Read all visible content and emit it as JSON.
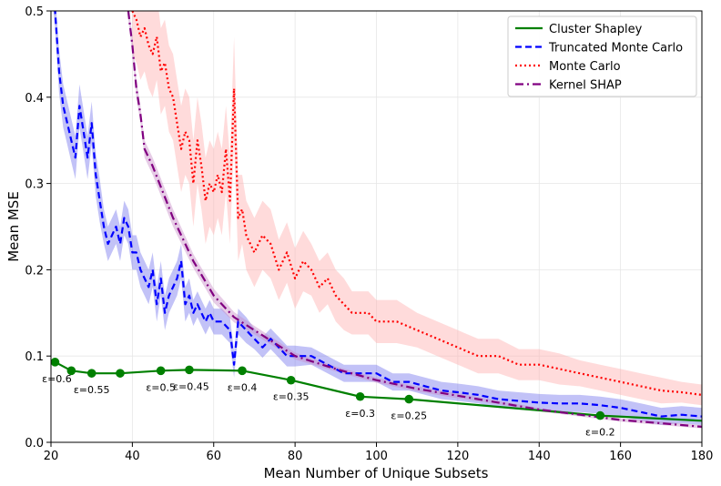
{
  "chart_data": {
    "type": "line",
    "title": "",
    "xlabel": "Mean Number of Unique Subsets",
    "ylabel": "Mean MSE",
    "xlim": [
      20,
      180
    ],
    "ylim": [
      0,
      0.5
    ],
    "xticks": [
      20,
      40,
      60,
      80,
      100,
      120,
      140,
      160,
      180
    ],
    "yticks": [
      0.0,
      0.1,
      0.2,
      0.3,
      0.4,
      0.5
    ],
    "xtick_labels": [
      "20",
      "40",
      "60",
      "80",
      "100",
      "120",
      "140",
      "160",
      "180"
    ],
    "ytick_labels": [
      "0.0",
      "0.1",
      "0.2",
      "0.3",
      "0.4",
      "0.5"
    ],
    "grid": true,
    "legend_position": "top-right",
    "series": [
      {
        "name": "Cluster Shapley",
        "color": "#008000",
        "style": "solid",
        "markers": true,
        "x": [
          21,
          25,
          30,
          37,
          47,
          54,
          67,
          79,
          96,
          108,
          155,
          180
        ],
        "y": [
          0.093,
          0.083,
          0.08,
          0.08,
          0.083,
          0.084,
          0.083,
          0.072,
          0.053,
          0.05,
          0.031,
          0.025
        ]
      },
      {
        "name": "Truncated Monte Carlo",
        "color": "#0000ff",
        "band_color": "#7777ee",
        "style": "dashed",
        "x": [
          20,
          21,
          22,
          23,
          24,
          25,
          26,
          27,
          28,
          29,
          30,
          31,
          32,
          33,
          34,
          35,
          36,
          37,
          38,
          39,
          40,
          41,
          42,
          43,
          44,
          45,
          46,
          47,
          48,
          49,
          50,
          51,
          52,
          53,
          54,
          55,
          56,
          57,
          58,
          59,
          60,
          62,
          64,
          65,
          66,
          68,
          70,
          72,
          74,
          76,
          78,
          80,
          84,
          88,
          92,
          96,
          100,
          104,
          108,
          112,
          116,
          120,
          125,
          130,
          135,
          140,
          145,
          150,
          155,
          160,
          165,
          170,
          175,
          180
        ],
        "y": [
          0.55,
          0.5,
          0.43,
          0.39,
          0.37,
          0.35,
          0.33,
          0.39,
          0.36,
          0.33,
          0.37,
          0.31,
          0.28,
          0.25,
          0.23,
          0.24,
          0.25,
          0.23,
          0.26,
          0.25,
          0.22,
          0.22,
          0.2,
          0.19,
          0.18,
          0.2,
          0.16,
          0.19,
          0.15,
          0.17,
          0.18,
          0.19,
          0.21,
          0.16,
          0.17,
          0.15,
          0.16,
          0.15,
          0.14,
          0.15,
          0.14,
          0.14,
          0.13,
          0.09,
          0.14,
          0.13,
          0.12,
          0.11,
          0.12,
          0.11,
          0.1,
          0.1,
          0.1,
          0.09,
          0.08,
          0.08,
          0.08,
          0.07,
          0.07,
          0.065,
          0.06,
          0.058,
          0.055,
          0.05,
          0.048,
          0.046,
          0.045,
          0.045,
          0.043,
          0.04,
          0.035,
          0.03,
          0.032,
          0.03
        ],
        "band_halfwidth": [
          0.02,
          0.02,
          0.025,
          0.025,
          0.025,
          0.025,
          0.025,
          0.025,
          0.025,
          0.025,
          0.025,
          0.025,
          0.025,
          0.02,
          0.02,
          0.02,
          0.02,
          0.02,
          0.02,
          0.02,
          0.02,
          0.02,
          0.02,
          0.02,
          0.02,
          0.02,
          0.02,
          0.02,
          0.02,
          0.02,
          0.02,
          0.02,
          0.02,
          0.02,
          0.02,
          0.015,
          0.015,
          0.015,
          0.015,
          0.015,
          0.015,
          0.015,
          0.015,
          0.015,
          0.015,
          0.015,
          0.012,
          0.012,
          0.012,
          0.012,
          0.012,
          0.012,
          0.01,
          0.01,
          0.01,
          0.01,
          0.01,
          0.01,
          0.01,
          0.01,
          0.01,
          0.01,
          0.01,
          0.01,
          0.01,
          0.01,
          0.01,
          0.01,
          0.01,
          0.01,
          0.01,
          0.01,
          0.01,
          0.01
        ]
      },
      {
        "name": "Monte Carlo",
        "color": "#ff0000",
        "band_color": "#ffb0b0",
        "style": "dotted",
        "x": [
          40,
          41,
          42,
          43,
          44,
          45,
          46,
          47,
          48,
          49,
          50,
          51,
          52,
          53,
          54,
          55,
          56,
          57,
          58,
          59,
          60,
          61,
          62,
          63,
          64,
          65,
          66,
          67,
          68,
          70,
          72,
          74,
          76,
          78,
          80,
          82,
          84,
          86,
          88,
          90,
          92,
          94,
          96,
          98,
          100,
          105,
          110,
          115,
          120,
          125,
          130,
          135,
          140,
          145,
          150,
          155,
          160,
          165,
          170,
          175,
          180
        ],
        "y": [
          0.5,
          0.49,
          0.47,
          0.48,
          0.46,
          0.45,
          0.47,
          0.43,
          0.44,
          0.41,
          0.4,
          0.37,
          0.34,
          0.36,
          0.35,
          0.3,
          0.35,
          0.32,
          0.28,
          0.3,
          0.29,
          0.31,
          0.29,
          0.34,
          0.28,
          0.41,
          0.26,
          0.27,
          0.24,
          0.22,
          0.24,
          0.23,
          0.2,
          0.22,
          0.19,
          0.21,
          0.2,
          0.18,
          0.19,
          0.17,
          0.16,
          0.15,
          0.15,
          0.15,
          0.14,
          0.14,
          0.13,
          0.12,
          0.11,
          0.1,
          0.1,
          0.09,
          0.09,
          0.085,
          0.08,
          0.075,
          0.07,
          0.065,
          0.06,
          0.058,
          0.055
        ],
        "band_halfwidth": [
          0.05,
          0.05,
          0.05,
          0.05,
          0.05,
          0.05,
          0.05,
          0.05,
          0.05,
          0.05,
          0.05,
          0.05,
          0.05,
          0.05,
          0.05,
          0.05,
          0.05,
          0.05,
          0.05,
          0.05,
          0.05,
          0.05,
          0.05,
          0.05,
          0.05,
          0.06,
          0.05,
          0.04,
          0.04,
          0.04,
          0.04,
          0.04,
          0.035,
          0.035,
          0.035,
          0.035,
          0.03,
          0.03,
          0.03,
          0.03,
          0.03,
          0.025,
          0.025,
          0.025,
          0.025,
          0.025,
          0.02,
          0.02,
          0.02,
          0.02,
          0.02,
          0.018,
          0.018,
          0.018,
          0.015,
          0.015,
          0.015,
          0.015,
          0.015,
          0.012,
          0.012
        ]
      },
      {
        "name": "Kernel SHAP",
        "color": "#800080",
        "band_color": "#c88ec8",
        "style": "dashdot",
        "x": [
          39,
          40,
          41,
          42,
          43,
          45,
          50,
          55,
          60,
          65,
          70,
          80,
          90,
          100,
          110,
          120,
          130,
          140,
          150,
          160,
          170,
          180
        ],
        "y": [
          0.5,
          0.46,
          0.41,
          0.38,
          0.34,
          0.32,
          0.26,
          0.21,
          0.17,
          0.145,
          0.13,
          0.1,
          0.085,
          0.072,
          0.062,
          0.054,
          0.046,
          0.038,
          0.032,
          0.026,
          0.022,
          0.018
        ],
        "band_halfwidth": [
          0.01,
          0.01,
          0.01,
          0.01,
          0.01,
          0.01,
          0.01,
          0.008,
          0.008,
          0.006,
          0.005,
          0.004,
          0.003,
          0.003,
          0.003,
          0.003,
          0.002,
          0.002,
          0.002,
          0.002,
          0.002,
          0.002
        ]
      }
    ],
    "annotations": [
      {
        "text": "ε=0.6",
        "x": 21,
        "y": 0.093
      },
      {
        "text": "ε=0.55",
        "x": 30,
        "y": 0.08
      },
      {
        "text": "ε=0.5",
        "x": 47,
        "y": 0.083
      },
      {
        "text": "ε=0.45",
        "x": 54,
        "y": 0.084
      },
      {
        "text": "ε=0.4",
        "x": 67,
        "y": 0.083
      },
      {
        "text": "ε=0.35",
        "x": 79,
        "y": 0.072
      },
      {
        "text": "ε=0.3",
        "x": 96,
        "y": 0.053
      },
      {
        "text": "ε=0.25",
        "x": 108,
        "y": 0.05
      },
      {
        "text": "ε=0.2",
        "x": 155,
        "y": 0.031
      }
    ]
  }
}
